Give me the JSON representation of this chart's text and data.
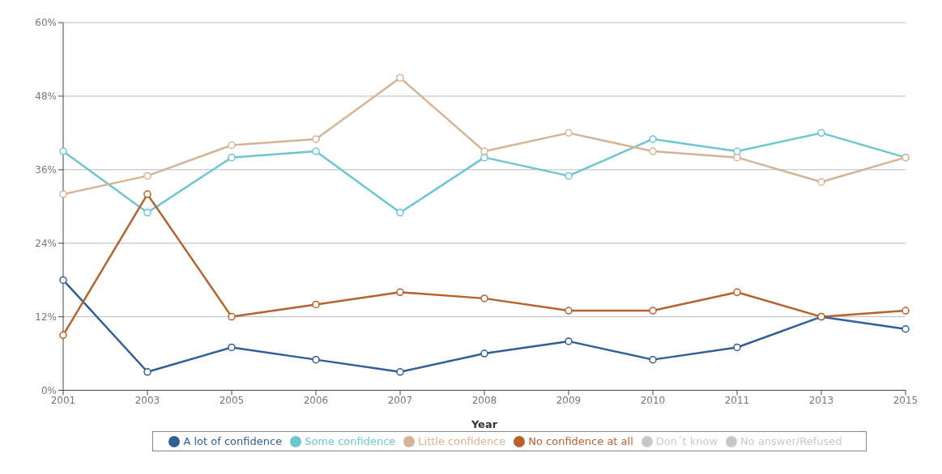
{
  "chart_data": {
    "type": "line",
    "xlabel": "Year",
    "categories": [
      "2001",
      "2003",
      "2005",
      "2006",
      "2007",
      "2008",
      "2009",
      "2010",
      "2011",
      "2013",
      "2015"
    ],
    "series": [
      {
        "name": "A lot of confidence",
        "color": "#2e5f96",
        "values": [
          18,
          3,
          7,
          5,
          3,
          6,
          8,
          5,
          7,
          12,
          10
        ]
      },
      {
        "name": "Some confidence",
        "color": "#6cc6d2",
        "values": [
          39,
          29,
          38,
          39,
          29,
          38,
          35,
          41,
          39,
          42,
          38
        ]
      },
      {
        "name": "Little confidence",
        "color": "#d5b394",
        "values": [
          32,
          35,
          40,
          41,
          51,
          39,
          42,
          39,
          38,
          34,
          38
        ]
      },
      {
        "name": "No confidence at all",
        "color": "#b5622e",
        "values": [
          9,
          32,
          12,
          14,
          16,
          15,
          13,
          13,
          16,
          12,
          13
        ]
      },
      {
        "name": "Don´t know",
        "color": "#c8c8c8",
        "values": [
          null,
          null,
          null,
          null,
          null,
          null,
          null,
          null,
          null,
          null,
          null
        ]
      },
      {
        "name": "No answer/Refused",
        "color": "#c8c8c8",
        "values": [
          null,
          null,
          null,
          null,
          null,
          null,
          null,
          null,
          null,
          null,
          null
        ]
      }
    ],
    "ylim": [
      0,
      60
    ],
    "yticks": [
      {
        "value": 0,
        "label": "0%"
      },
      {
        "value": 12,
        "label": "12%"
      },
      {
        "value": 24,
        "label": "24%"
      },
      {
        "value": 36,
        "label": "36%"
      },
      {
        "value": 48,
        "label": "48%"
      },
      {
        "value": 60,
        "label": "60%"
      }
    ],
    "grid": "y",
    "legend": "bottom",
    "marker": "circle",
    "line_style": "solid"
  }
}
